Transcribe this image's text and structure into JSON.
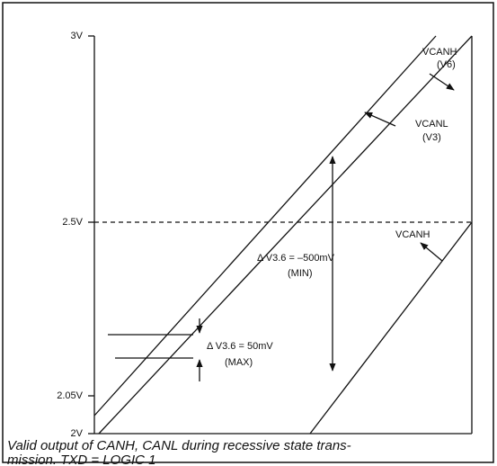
{
  "axis": {
    "ticks": [
      "3V",
      "2.5V",
      "2.05V",
      "2V"
    ]
  },
  "annotations": {
    "canh_top": "VCANH",
    "canh_top_sub": "(V6)",
    "canl": "VCANL",
    "canl_sub": "(V3)",
    "canh_low": "VCANH",
    "delta_min": "Δ V3.6 = –500mV",
    "delta_min_sub": "(MIN)",
    "delta_max": "Δ V3.6 = 50mV",
    "delta_max_sub": "(MAX)"
  },
  "caption": [
    "Valid output of CANH, CANL during recessive state trans-",
    "mission. TXD = LOGIC 1"
  ]
}
